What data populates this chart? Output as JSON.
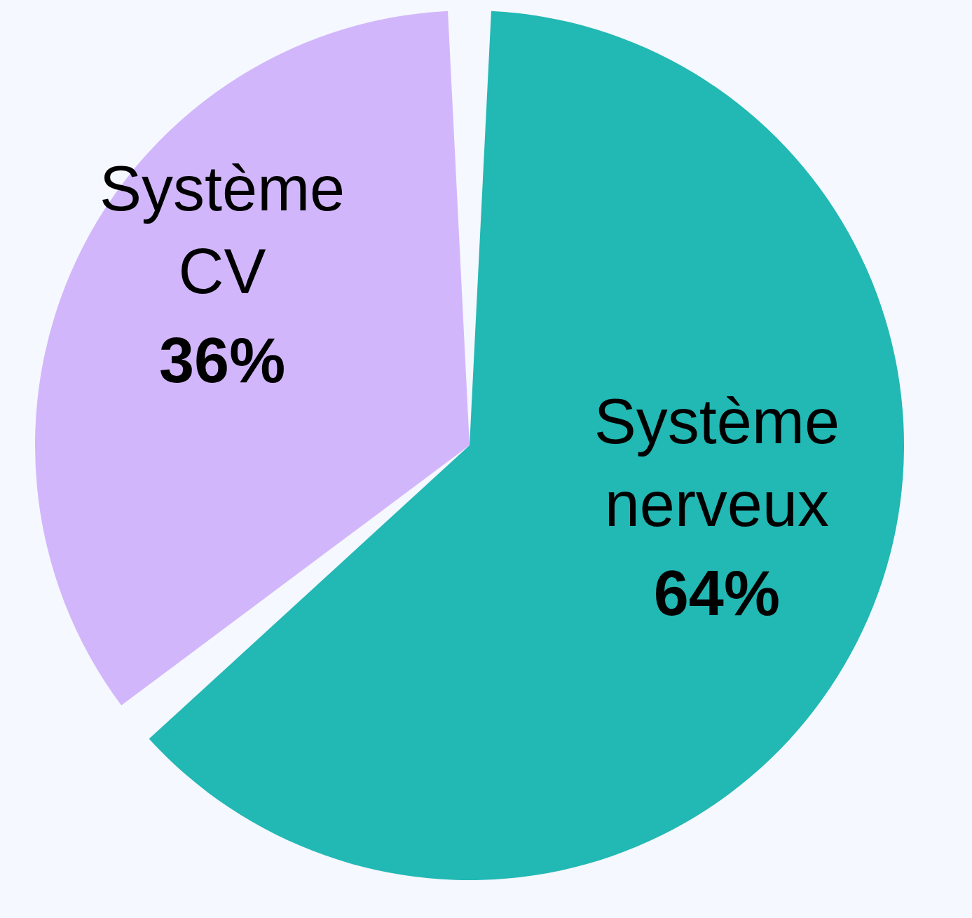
{
  "chart_data": {
    "type": "pie",
    "categories": [
      "Système nerveux",
      "Système CV"
    ],
    "values": [
      64,
      36
    ],
    "colors": [
      "#22b8b4",
      "#d2b6fb"
    ],
    "value_labels": [
      "64%",
      "36%"
    ]
  }
}
